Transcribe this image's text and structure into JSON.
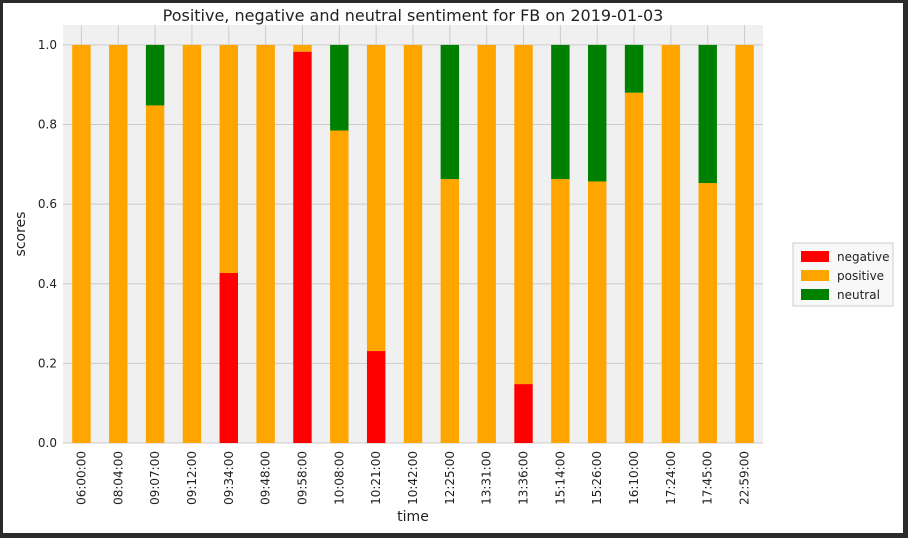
{
  "chart_data": {
    "type": "bar",
    "stacked": true,
    "title": "Positive, negative and neutral sentiment for FB on 2019-01-03",
    "xlabel": "time",
    "ylabel": "scores",
    "ylim": [
      0,
      1.05
    ],
    "yticks": [
      "0.0",
      "0.2",
      "0.4",
      "0.6",
      "0.8",
      "1.0"
    ],
    "grid": true,
    "legend_position": "right",
    "categories": [
      "06:00:00",
      "08:04:00",
      "09:07:00",
      "09:12:00",
      "09:34:00",
      "09:48:00",
      "09:58:00",
      "10:08:00",
      "10:21:00",
      "10:42:00",
      "12:25:00",
      "13:31:00",
      "13:36:00",
      "15:14:00",
      "15:26:00",
      "16:10:00",
      "17:24:00",
      "17:45:00",
      "22:59:00"
    ],
    "series": [
      {
        "name": "negative",
        "color": "#ff0000",
        "values": [
          0,
          0,
          0,
          0,
          0.427,
          0,
          0.983,
          0,
          0.231,
          0,
          0,
          0,
          0.148,
          0,
          0,
          0,
          0,
          0,
          0
        ]
      },
      {
        "name": "positive",
        "color": "#ffa500",
        "values": [
          1.0,
          1.0,
          0.848,
          1.0,
          0.573,
          1.0,
          0.017,
          0.785,
          0.769,
          1.0,
          0.663,
          1.0,
          0.852,
          0.663,
          0.657,
          0.88,
          1.0,
          0.653,
          1.0
        ]
      },
      {
        "name": "neutral",
        "color": "#008000",
        "values": [
          0,
          0,
          0.152,
          0,
          0,
          0,
          0,
          0.215,
          0,
          0,
          0.337,
          0,
          0,
          0.337,
          0.343,
          0.12,
          0,
          0.347,
          0
        ]
      }
    ]
  }
}
